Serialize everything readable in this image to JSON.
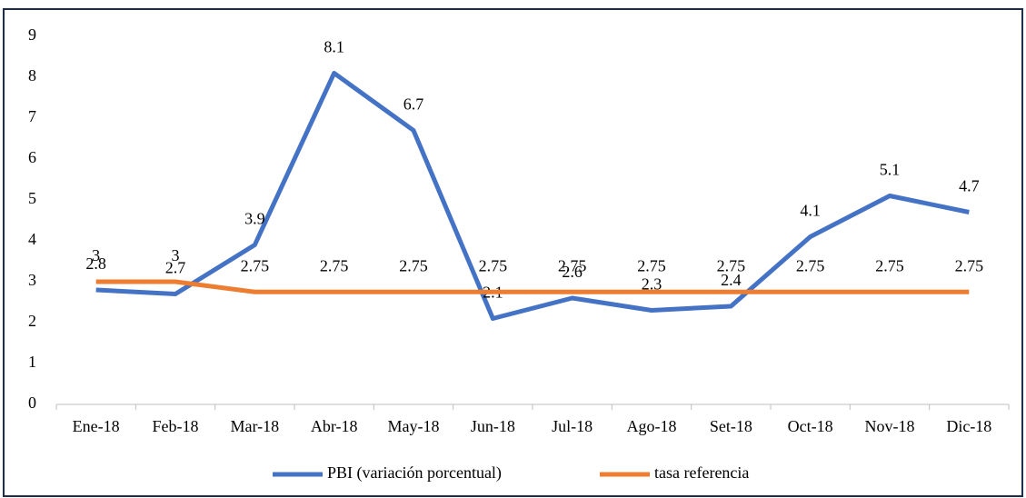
{
  "chart_data": {
    "type": "line",
    "categories": [
      "Ene-18",
      "Feb-18",
      "Mar-18",
      "Abr-18",
      "May-18",
      "Jun-18",
      "Jul-18",
      "Ago-18",
      "Set-18",
      "Oct-18",
      "Nov-18",
      "Dic-18"
    ],
    "series": [
      {
        "name": "PBI (variación porcentual)",
        "color": "#4472c4",
        "values": [
          2.8,
          2.7,
          3.9,
          8.1,
          6.7,
          2.1,
          2.6,
          2.3,
          2.4,
          4.1,
          5.1,
          4.7
        ]
      },
      {
        "name": "tasa referencia",
        "color": "#ed7d31",
        "values": [
          3,
          3,
          2.75,
          2.75,
          2.75,
          2.75,
          2.75,
          2.75,
          2.75,
          2.75,
          2.75,
          2.75
        ]
      }
    ],
    "ylim": [
      0,
      9
    ],
    "yticks": [
      0,
      1,
      2,
      3,
      4,
      5,
      6,
      7,
      8,
      9
    ],
    "grid": false,
    "data_labels": true,
    "legend": "bottom"
  }
}
